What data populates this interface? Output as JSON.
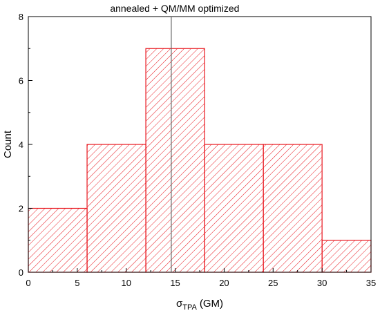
{
  "chart_data": {
    "type": "histogram",
    "bins": [
      {
        "x0": 0,
        "x1": 6,
        "count": 2
      },
      {
        "x0": 6,
        "x1": 12,
        "count": 4
      },
      {
        "x0": 12,
        "x1": 18,
        "count": 7
      },
      {
        "x0": 18,
        "x1": 24,
        "count": 4
      },
      {
        "x0": 24,
        "x1": 30,
        "count": 4
      },
      {
        "x0": 30,
        "x1": 35,
        "count": 1
      }
    ],
    "xlabel": "σ",
    "xlabel_subscript": "TPA",
    "xlabel_unit": "(GM)",
    "ylabel": "Count",
    "xlim": [
      0,
      35
    ],
    "ylim": [
      0,
      8
    ],
    "xticks": [
      0,
      5,
      10,
      15,
      20,
      25,
      30,
      35
    ],
    "yticks": [
      0,
      2,
      4,
      6,
      8
    ],
    "bar_style": "hatched",
    "bar_color": "#e8141c",
    "reference_line": {
      "x": 14.6,
      "label": "annealed + QM/MM optimized"
    },
    "reference_line_color": "#666666",
    "grid": false
  }
}
